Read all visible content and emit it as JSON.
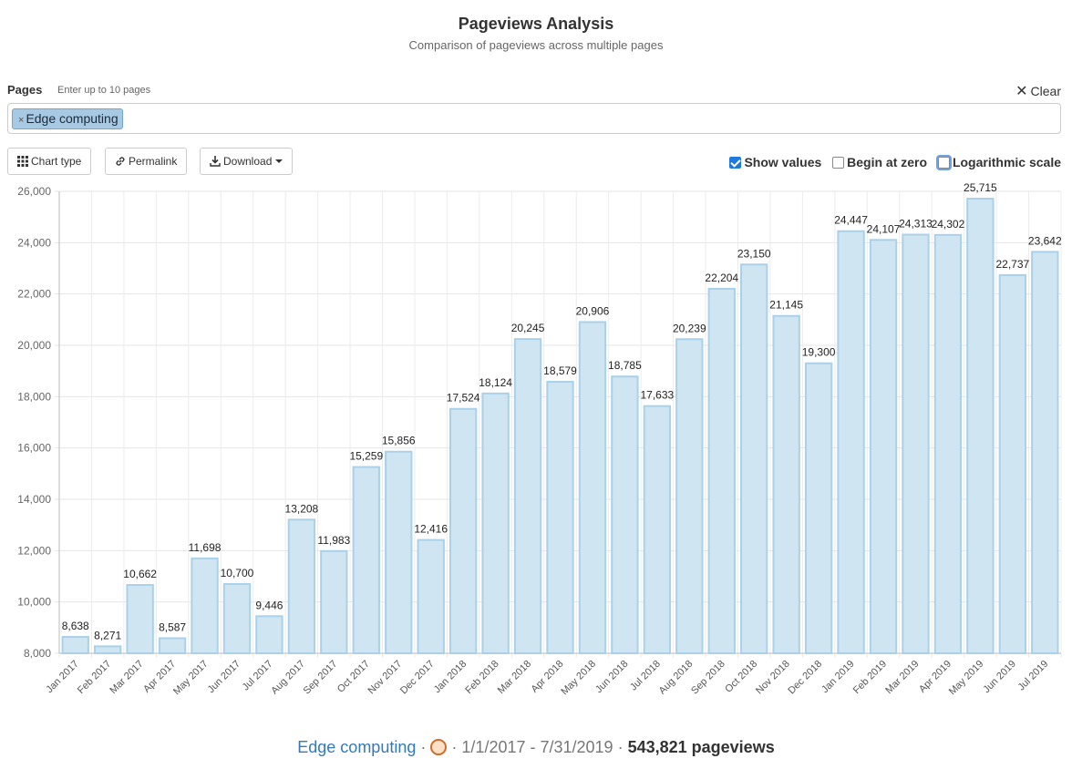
{
  "header": {
    "title": "Pageviews Analysis",
    "subtitle": "Comparison of pageviews across multiple pages"
  },
  "pages": {
    "label": "Pages",
    "hint": "Enter up to 10 pages",
    "clear_label": "Clear",
    "tags": [
      {
        "remove": "×",
        "label": "Edge computing"
      }
    ]
  },
  "toolbar": {
    "chart_type_label": "Chart type",
    "permalink_label": "Permalink",
    "download_label": "Download"
  },
  "options": {
    "show_values": {
      "label": "Show values",
      "checked": true
    },
    "begin_at_zero": {
      "label": "Begin at zero",
      "checked": false
    },
    "logarithmic_scale": {
      "label": "Logarithmic scale",
      "checked": false
    }
  },
  "chart_data": {
    "type": "bar",
    "categories": [
      "Jan 2017",
      "Feb 2017",
      "Mar 2017",
      "Apr 2017",
      "May 2017",
      "Jun 2017",
      "Jul 2017",
      "Aug 2017",
      "Sep 2017",
      "Oct 2017",
      "Nov 2017",
      "Dec 2017",
      "Jan 2018",
      "Feb 2018",
      "Mar 2018",
      "Apr 2018",
      "May 2018",
      "Jun 2018",
      "Jul 2018",
      "Aug 2018",
      "Sep 2018",
      "Oct 2018",
      "Nov 2018",
      "Dec 2018",
      "Jan 2019",
      "Feb 2019",
      "Mar 2019",
      "Apr 2019",
      "May 2019",
      "Jun 2019",
      "Jul 2019"
    ],
    "series": [
      {
        "values": [
          8638,
          8271,
          10662,
          8587,
          11698,
          10700,
          9446,
          13208,
          11983,
          15259,
          15856,
          12416,
          17524,
          18124,
          20245,
          18579,
          20906,
          18785,
          17633,
          20239,
          22204,
          23150,
          21145,
          19300,
          24447,
          24107,
          24313,
          24302,
          25715,
          22737,
          23642
        ]
      }
    ],
    "value_labels": [
      "8,638",
      "8,271",
      "10,662",
      "8,587",
      "11,698",
      "10,700",
      "9,446",
      "13,208",
      "11,983",
      "15,259",
      "15,856",
      "12,416",
      "17,524",
      "18,124",
      "20,245",
      "18,579",
      "20,906",
      "18,785",
      "17,633",
      "20,239",
      "22,204",
      "23,150",
      "21,145",
      "19,300",
      "24,447",
      "24,107",
      "24,313",
      "24,302",
      "25,715",
      "22,737",
      "23,642"
    ],
    "ylim": [
      8000,
      26000
    ],
    "y_ticks": [
      8000,
      10000,
      12000,
      14000,
      16000,
      18000,
      20000,
      22000,
      24000,
      26000
    ],
    "y_tick_labels": [
      "8,000",
      "10,000",
      "12,000",
      "14,000",
      "16,000",
      "18,000",
      "20,000",
      "22,000",
      "24,000",
      "26,000"
    ],
    "grid": true,
    "bar_fill": "#cfe5f2",
    "bar_stroke": "#a9d1ea"
  },
  "footer": {
    "article": "Edge computing",
    "sep": "·",
    "date_range": "1/1/2017 - 7/31/2019",
    "total": "543,821 pageviews"
  }
}
